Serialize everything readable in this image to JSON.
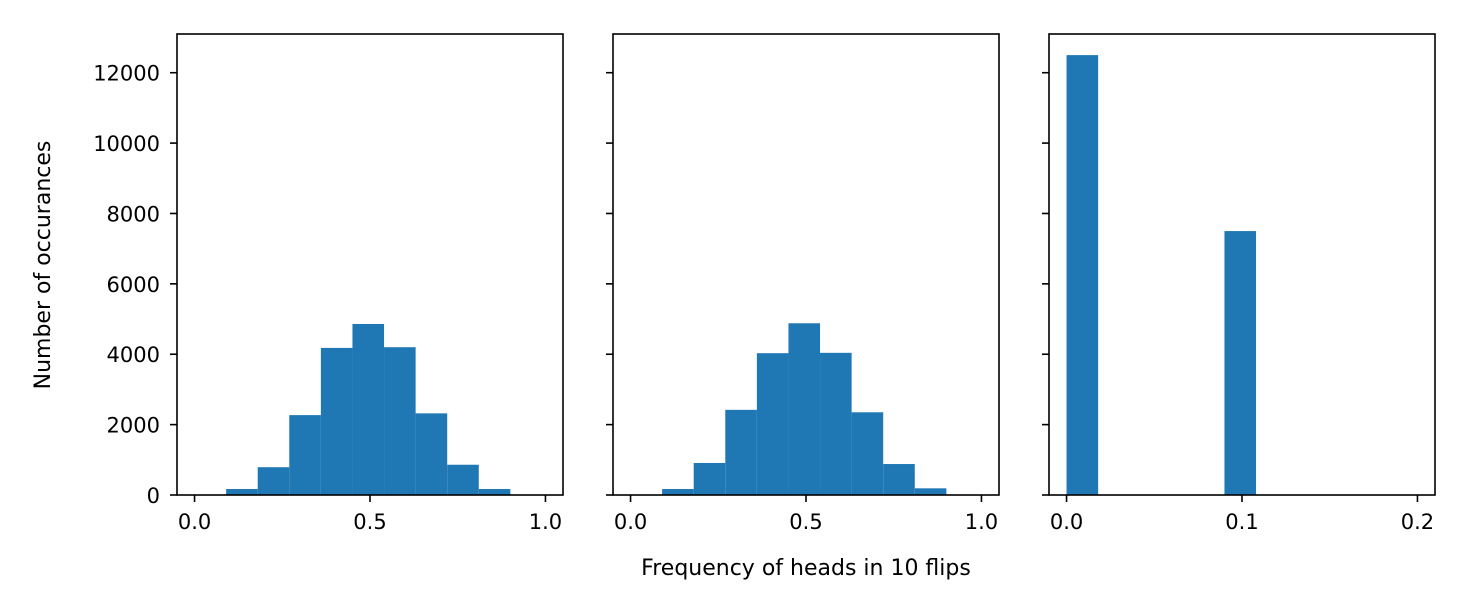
{
  "figure": {
    "xlabel": "Frequency of heads in 10 flips",
    "ylabel": "Number of occurances",
    "bar_color": "#1f77b4"
  },
  "chart_data": [
    {
      "type": "bar",
      "xlim": [
        -0.05,
        1.05
      ],
      "ylim": [
        0,
        13100
      ],
      "xticks": [
        0.0,
        0.5,
        1.0
      ],
      "xtick_labels": [
        "0.0",
        "0.5",
        "1.0"
      ],
      "yticks": [
        0,
        2000,
        4000,
        6000,
        8000,
        10000,
        12000
      ],
      "ytick_labels": [
        "0",
        "2000",
        "4000",
        "6000",
        "8000",
        "10000",
        "12000"
      ],
      "grid": false,
      "bars": [
        {
          "x0": 0.0,
          "x1": 0.09,
          "value": 10
        },
        {
          "x0": 0.09,
          "x1": 0.18,
          "value": 170
        },
        {
          "x0": 0.18,
          "x1": 0.27,
          "value": 790
        },
        {
          "x0": 0.27,
          "x1": 0.36,
          "value": 2270
        },
        {
          "x0": 0.36,
          "x1": 0.45,
          "value": 4180
        },
        {
          "x0": 0.45,
          "x1": 0.54,
          "value": 4860
        },
        {
          "x0": 0.54,
          "x1": 0.63,
          "value": 4200
        },
        {
          "x0": 0.63,
          "x1": 0.72,
          "value": 2320
        },
        {
          "x0": 0.72,
          "x1": 0.81,
          "value": 860
        },
        {
          "x0": 0.81,
          "x1": 0.9,
          "value": 170
        },
        {
          "x0": 0.9,
          "x1": 1.0,
          "value": 10
        }
      ]
    },
    {
      "type": "bar",
      "xlim": [
        -0.05,
        1.05
      ],
      "ylim": [
        0,
        13100
      ],
      "xticks": [
        0.0,
        0.5,
        1.0
      ],
      "xtick_labels": [
        "0.0",
        "0.5",
        "1.0"
      ],
      "yticks": [
        0,
        2000,
        4000,
        6000,
        8000,
        10000,
        12000
      ],
      "grid": false,
      "bars": [
        {
          "x0": 0.0,
          "x1": 0.09,
          "value": 10
        },
        {
          "x0": 0.09,
          "x1": 0.18,
          "value": 170
        },
        {
          "x0": 0.18,
          "x1": 0.27,
          "value": 910
        },
        {
          "x0": 0.27,
          "x1": 0.36,
          "value": 2420
        },
        {
          "x0": 0.36,
          "x1": 0.45,
          "value": 4030
        },
        {
          "x0": 0.45,
          "x1": 0.54,
          "value": 4880
        },
        {
          "x0": 0.54,
          "x1": 0.63,
          "value": 4040
        },
        {
          "x0": 0.63,
          "x1": 0.72,
          "value": 2350
        },
        {
          "x0": 0.72,
          "x1": 0.81,
          "value": 880
        },
        {
          "x0": 0.81,
          "x1": 0.9,
          "value": 190
        },
        {
          "x0": 0.9,
          "x1": 1.0,
          "value": 10
        }
      ]
    },
    {
      "type": "bar",
      "xlim": [
        -0.01,
        0.21
      ],
      "ylim": [
        0,
        13100
      ],
      "xticks": [
        0.0,
        0.1,
        0.2
      ],
      "xtick_labels": [
        "0.0",
        "0.1",
        "0.2"
      ],
      "yticks": [
        0,
        2000,
        4000,
        6000,
        8000,
        10000,
        12000
      ],
      "grid": false,
      "bars": [
        {
          "x0": 0.0,
          "x1": 0.018,
          "value": 12500
        },
        {
          "x0": 0.09,
          "x1": 0.108,
          "value": 7500
        }
      ]
    }
  ]
}
